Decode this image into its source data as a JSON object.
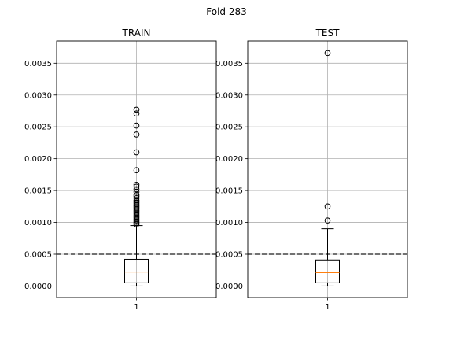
{
  "chart_data": {
    "type": "boxplot",
    "title": "Fold 283",
    "ylim": [
      -0.00018,
      0.00385
    ],
    "yticks": [
      0.0,
      0.0005,
      0.001,
      0.0015,
      0.002,
      0.0025,
      0.003,
      0.0035
    ],
    "ytick_labels": [
      "0.0000",
      "0.0005",
      "0.0010",
      "0.0015",
      "0.0020",
      "0.0025",
      "0.0030",
      "0.0035"
    ],
    "reference_line": 0.0005,
    "grid": true,
    "panels": [
      {
        "title": "TRAIN",
        "xtick_label": "1",
        "min": 0.0,
        "q1": 5e-05,
        "median": 0.00022,
        "q3": 0.00042,
        "max": 0.00095,
        "outliers": [
          0.00097,
          0.00099,
          0.00101,
          0.00103,
          0.00105,
          0.00107,
          0.00109,
          0.00111,
          0.00113,
          0.00115,
          0.00117,
          0.00119,
          0.00121,
          0.00123,
          0.00125,
          0.00127,
          0.00129,
          0.00131,
          0.00133,
          0.00135,
          0.00138,
          0.00141,
          0.00143,
          0.00148,
          0.00152,
          0.00156,
          0.00159,
          0.00182,
          0.0021,
          0.00238,
          0.00252,
          0.00271,
          0.00277
        ]
      },
      {
        "title": "TEST",
        "xtick_label": "1",
        "min": 0.0,
        "q1": 5e-05,
        "median": 0.00021,
        "q3": 0.00041,
        "max": 0.0009,
        "outliers": [
          0.00103,
          0.00125,
          0.00366
        ]
      }
    ]
  }
}
